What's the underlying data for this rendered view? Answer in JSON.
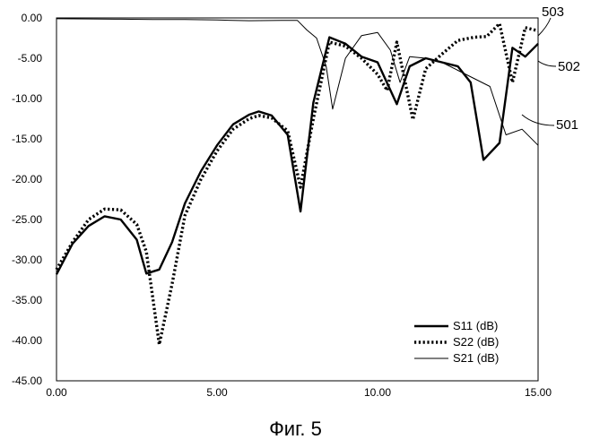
{
  "caption": "Фиг. 5",
  "chart_data": {
    "type": "line",
    "xlim": [
      0,
      15
    ],
    "ylim": [
      -45,
      0
    ],
    "x_ticks": [
      "0.00",
      "5.00",
      "10.00",
      "15.00"
    ],
    "y_ticks": [
      "0.00",
      "-5.00",
      "-10.00",
      "-15.00",
      "-20.00",
      "-25.00",
      "-30.00",
      "-35.00",
      "-40.00",
      "-45.00"
    ],
    "grid": false,
    "legend_position": "bottom-right",
    "series": [
      {
        "name": "S11 (dB)",
        "ref": "502",
        "style": "thick-solid",
        "x": [
          0,
          0.5,
          1.0,
          1.5,
          2.0,
          2.5,
          2.8,
          3.2,
          3.6,
          4.0,
          4.5,
          5.0,
          5.5,
          6.0,
          6.3,
          6.7,
          7.2,
          7.6,
          8.0,
          8.5,
          9.0,
          9.5,
          10.0,
          10.6,
          11.0,
          11.5,
          12.0,
          12.5,
          12.9,
          13.3,
          13.8,
          14.2,
          14.6,
          15.0
        ],
        "values": [
          -31.8,
          -28.0,
          -25.8,
          -24.6,
          -25.0,
          -27.5,
          -31.7,
          -31.2,
          -27.8,
          -23.0,
          -19.0,
          -15.8,
          -13.2,
          -12.0,
          -11.6,
          -12.1,
          -14.5,
          -24.0,
          -10.5,
          -2.4,
          -3.2,
          -4.8,
          -5.5,
          -10.7,
          -6.0,
          -5.0,
          -5.5,
          -6.0,
          -8.0,
          -17.6,
          -15.5,
          -3.7,
          -4.8,
          -3.2
        ]
      },
      {
        "name": "S22 (dB)",
        "ref": "503",
        "style": "dotted",
        "x": [
          0,
          0.5,
          1.0,
          1.5,
          2.0,
          2.5,
          2.8,
          3.2,
          3.6,
          4.0,
          4.5,
          5.0,
          5.5,
          6.0,
          6.3,
          6.7,
          7.2,
          7.6,
          8.0,
          8.5,
          9.0,
          9.5,
          10.0,
          10.3,
          10.6,
          11.1,
          11.5,
          12.0,
          12.5,
          13.0,
          13.4,
          13.8,
          14.2,
          14.6,
          15.0
        ],
        "values": [
          -31.2,
          -27.8,
          -25.0,
          -23.7,
          -23.8,
          -25.6,
          -29.0,
          -40.5,
          -33.0,
          -24.5,
          -20.0,
          -16.5,
          -13.8,
          -12.5,
          -12.1,
          -12.4,
          -14.0,
          -21.0,
          -12.5,
          -3.0,
          -3.5,
          -5.0,
          -7.0,
          -9.0,
          -3.0,
          -12.6,
          -6.3,
          -4.5,
          -2.8,
          -2.4,
          -2.3,
          -0.7,
          -8.0,
          -1.2,
          -1.6
        ]
      },
      {
        "name": "S21 (dB)",
        "ref": "501",
        "style": "thin-solid",
        "x": [
          0,
          1.0,
          2.0,
          3.0,
          4.0,
          5.0,
          6.0,
          7.0,
          7.5,
          7.8,
          8.1,
          8.4,
          8.6,
          9.0,
          9.5,
          10.0,
          10.4,
          10.7,
          11.0,
          11.5,
          12.0,
          12.5,
          13.0,
          13.5,
          14.0,
          14.5,
          15.0
        ],
        "values": [
          -0.1,
          -0.12,
          -0.15,
          -0.2,
          -0.2,
          -0.25,
          -0.35,
          -0.3,
          -0.3,
          -1.5,
          -2.5,
          -6.0,
          -11.3,
          -5.0,
          -2.2,
          -1.8,
          -4.0,
          -8.0,
          -4.8,
          -5.0,
          -5.5,
          -6.5,
          -7.5,
          -8.5,
          -14.5,
          -13.8,
          -15.8
        ]
      }
    ]
  }
}
